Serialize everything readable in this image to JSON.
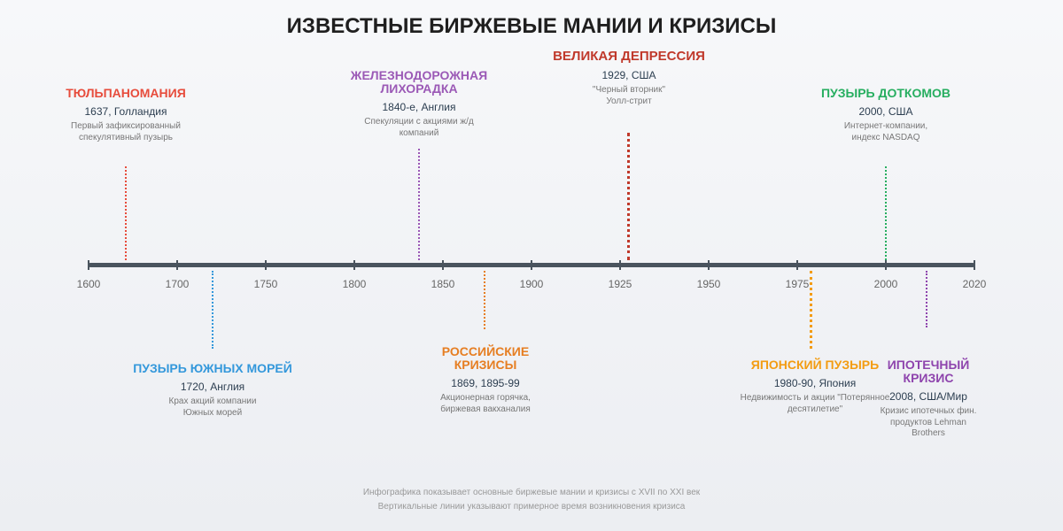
{
  "title": "ИЗВЕСТНЫЕ БИРЖЕВЫЕ МАНИИ И КРИЗИСЫ",
  "axis": {
    "ticks": [
      "1600",
      "1700",
      "1750",
      "1800",
      "1850",
      "1900",
      "1925",
      "1950",
      "1975",
      "2000",
      "2020"
    ]
  },
  "events": [
    {
      "id": "tulip",
      "title": "ТЮЛЬПАНОМАНИЯ",
      "date": "1637, Голландия",
      "desc": "Первый зафиксированный спекулятивный пузырь",
      "color": "#e74c3c"
    },
    {
      "id": "railway",
      "title": "ЖЕЛЕЗНОДОРОЖНАЯ ЛИХОРАДКА",
      "date": "1840-е, Англия",
      "desc": "Спекуляции с акциями ж/д компаний",
      "color": "#9b59b6"
    },
    {
      "id": "depression",
      "title": "ВЕЛИКАЯ ДЕПРЕССИЯ",
      "date": "1929, США",
      "desc": "\"Черный вторник\" Уолл-стрит",
      "color": "#c0392b"
    },
    {
      "id": "dotcom",
      "title": "ПУЗЫРЬ ДОТКОМОВ",
      "date": "2000, США",
      "desc": "Интернет-компании, индекс NASDAQ",
      "color": "#27ae60"
    },
    {
      "id": "southsea",
      "title": "ПУЗЫРЬ ЮЖНЫХ МОРЕЙ",
      "date": "1720, Англия",
      "desc": "Крах акций компании Южных морей",
      "color": "#3498db"
    },
    {
      "id": "russian",
      "title": "РОССИЙСКИЕ КРИЗИСЫ",
      "date": "1869, 1895-99",
      "desc": "Акционерная горячка, биржевая вакханалия",
      "color": "#e67e22"
    },
    {
      "id": "japan",
      "title": "ЯПОНСКИЙ ПУЗЫРЬ",
      "date": "1980-90, Япония",
      "desc": "Недвижимость и акции \"Потерянное десятилетие\"",
      "color": "#f39c12"
    },
    {
      "id": "mortgage",
      "title": "ИПОТЕЧНЫЙ КРИЗИС",
      "date": "2008, США/Мир",
      "desc": "Кризис ипотечных фин. продуктов Lehman Brothers",
      "color": "#8e44ad"
    }
  ],
  "footer": {
    "line1": "Инфографика показывает основные биржевые мании и кризисы с XVII по XXI век",
    "line2": "Вертикальные линии указывают примерное время возникновения кризиса"
  }
}
